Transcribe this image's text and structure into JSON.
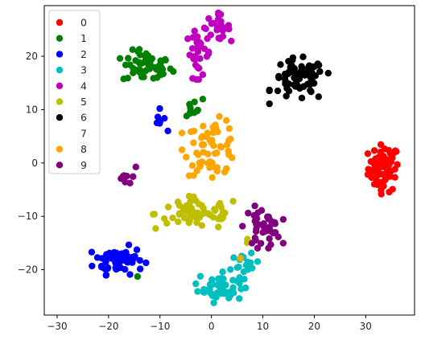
{
  "chart_data": {
    "type": "scatter",
    "title": "",
    "xlabel": "",
    "ylabel": "",
    "xlim": [
      -32.5,
      39.5
    ],
    "ylim": [
      -28.5,
      29.5
    ],
    "xticks": [
      -30,
      -20,
      -10,
      0,
      10,
      20,
      30
    ],
    "yticks": [
      -20,
      -10,
      0,
      10,
      20
    ],
    "grid": false,
    "legend": "top-left",
    "series": [
      {
        "name": "0",
        "color": "#ff0000",
        "clusters": [
          {
            "cx": 33.5,
            "cy": -1.0,
            "sx": 1.5,
            "sy": 2.2,
            "n": 70
          }
        ]
      },
      {
        "name": "1",
        "color": "#008000",
        "clusters": [
          {
            "cx": -12.5,
            "cy": 18.0,
            "sx": 2.4,
            "sy": 1.5,
            "n": 55
          },
          {
            "cx": -5.0,
            "cy": 10.5,
            "sx": 2.2,
            "sy": 1.0,
            "n": 10
          },
          {
            "cx": -14.5,
            "cy": -21.0,
            "sx": 0.3,
            "sy": 0.3,
            "n": 1
          }
        ]
      },
      {
        "name": "2",
        "color": "#0000ff",
        "clusters": [
          {
            "cx": -18.0,
            "cy": -18.2,
            "sx": 2.4,
            "sy": 1.3,
            "n": 60
          },
          {
            "cx": -10.0,
            "cy": 8.0,
            "sx": 0.7,
            "sy": 1.0,
            "n": 8
          }
        ]
      },
      {
        "name": "3",
        "color": "#00bfbf",
        "clusters": [
          {
            "cx": 1.8,
            "cy": -23.0,
            "sx": 2.2,
            "sy": 1.5,
            "n": 50
          },
          {
            "cx": 6.5,
            "cy": -19.5,
            "sx": 1.4,
            "sy": 1.2,
            "n": 15
          }
        ]
      },
      {
        "name": "4",
        "color": "#bf00bf",
        "clusters": [
          {
            "cx": -2.5,
            "cy": 20.5,
            "sx": 1.2,
            "sy": 2.2,
            "n": 30
          },
          {
            "cx": 1.0,
            "cy": 25.5,
            "sx": 1.3,
            "sy": 1.2,
            "n": 25
          }
        ]
      },
      {
        "name": "5",
        "color": "#bfbf00",
        "clusters": [
          {
            "cx": -2.5,
            "cy": -9.5,
            "sx": 4.2,
            "sy": 1.5,
            "n": 65
          },
          {
            "cx": 7.0,
            "cy": -14.5,
            "sx": 0.5,
            "sy": 0.5,
            "n": 2
          }
        ]
      },
      {
        "name": "6",
        "color": "#000000",
        "clusters": [
          {
            "cx": 17.0,
            "cy": 15.5,
            "sx": 2.6,
            "sy": 2.0,
            "n": 70
          }
        ]
      },
      {
        "name": "7",
        "color": "#ffffff",
        "clusters": []
      },
      {
        "name": "8",
        "color": "#ffa500",
        "clusters": [
          {
            "cx": 0.0,
            "cy": 3.0,
            "sx": 2.6,
            "sy": 2.6,
            "n": 60
          },
          {
            "cx": 5.5,
            "cy": -18.3,
            "sx": 0.3,
            "sy": 0.3,
            "n": 1
          }
        ]
      },
      {
        "name": "9",
        "color": "#800080",
        "clusters": [
          {
            "cx": 10.0,
            "cy": -12.0,
            "sx": 1.8,
            "sy": 1.8,
            "n": 40
          },
          {
            "cx": -17.0,
            "cy": -3.0,
            "sx": 0.8,
            "sy": 1.0,
            "n": 8
          },
          {
            "cx": -14.5,
            "cy": -0.5,
            "sx": 0.2,
            "sy": 0.2,
            "n": 1
          }
        ]
      }
    ]
  }
}
